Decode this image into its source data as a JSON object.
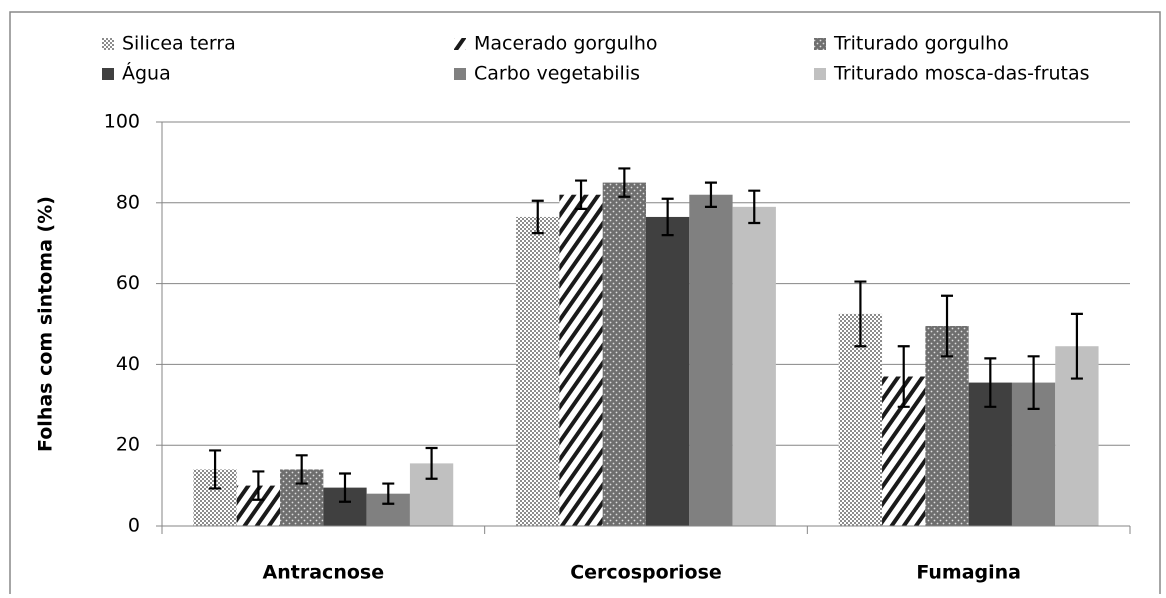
{
  "chart_data": {
    "type": "bar",
    "ylabel": "Folhas com sintoma (%)",
    "categories": [
      "Antracnose",
      "Cercosporiose",
      "Fumagina"
    ],
    "ylim": [
      0,
      100
    ],
    "yticks": [
      0,
      20,
      40,
      60,
      80,
      100
    ],
    "grid": true,
    "series": [
      {
        "name": "Silicea terra",
        "color": "#8c8c8c",
        "pattern": "checker",
        "values": [
          14,
          76.5,
          52.5
        ],
        "errors": [
          4.7,
          4,
          8
        ]
      },
      {
        "name": "Macerado gorgulho",
        "color": "#1a1a1a",
        "pattern": "diagonal",
        "values": [
          10,
          82,
          37
        ],
        "errors": [
          3.5,
          3.5,
          7.5
        ]
      },
      {
        "name": "Triturado gorgulho",
        "color": "#6e6e6e",
        "pattern": "dots",
        "values": [
          14,
          85,
          49.5
        ],
        "errors": [
          3.5,
          3.5,
          7.5
        ]
      },
      {
        "name": "Água",
        "color": "#404040",
        "values": [
          9.5,
          76.5,
          35.5
        ],
        "errors": [
          3.5,
          4.5,
          6
        ]
      },
      {
        "name": "Carbo vegetabilis",
        "color": "#808080",
        "values": [
          8,
          82,
          35.5
        ],
        "errors": [
          2.5,
          3,
          6.5
        ]
      },
      {
        "name": "Triturado mosca-das-frutas",
        "color": "#c0c0c0",
        "values": [
          15.5,
          79,
          44.5
        ],
        "errors": [
          3.8,
          4,
          8
        ]
      }
    ]
  }
}
